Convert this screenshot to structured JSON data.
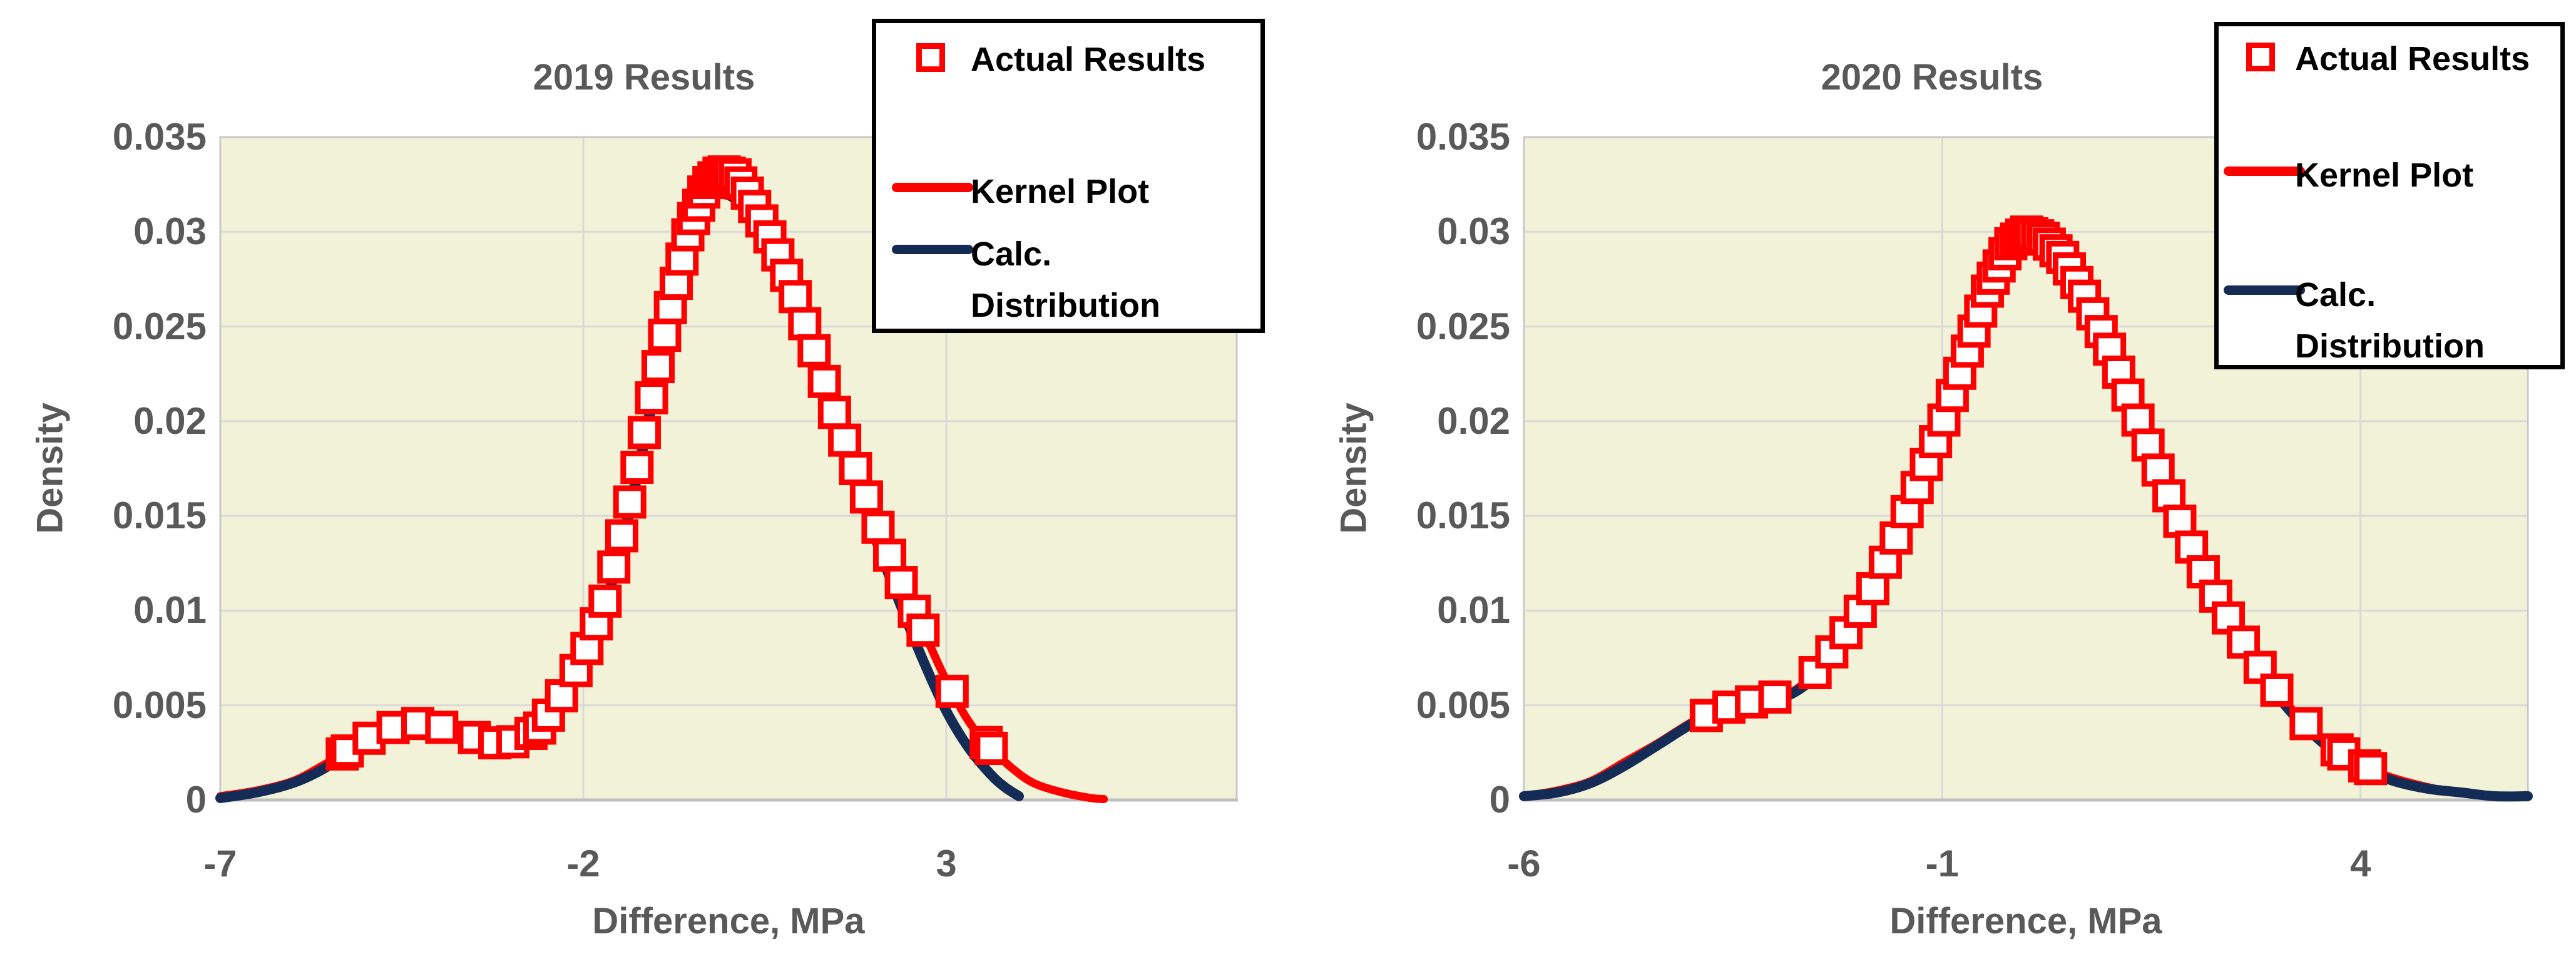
{
  "figure": {
    "description": "Two side-by-side Excel-style density charts comparing actual results, kernel density plot and calculated distribution",
    "background_color": "#ffffff"
  },
  "colors": {
    "plot_background": "#f2f2d8",
    "gridline": "#d9d9d9",
    "plot_border": "#c9c9c9",
    "axis_line": "#bfbfbf",
    "axis_text": "#595959",
    "series_red": "#ff0000",
    "series_navy": "#142c55",
    "legend_border": "#000000",
    "legend_text": "#000000"
  },
  "chart_data": [
    {
      "type": "line",
      "title": "2019 Results",
      "xlabel": "Difference, MPa",
      "ylabel": "Density",
      "xlim": [
        -7,
        7
      ],
      "ylim": [
        0,
        0.035
      ],
      "x_ticks": [
        -7,
        -2,
        3
      ],
      "x_tick_labels": [
        "-7",
        "-2",
        "3"
      ],
      "y_ticks": [
        0.035,
        0.03,
        0.025,
        0.02,
        0.015,
        0.01,
        0.005,
        0
      ],
      "y_tick_labels": [
        "0.035",
        "0.03",
        "0.025",
        "0.02",
        "0.015",
        "0.01",
        "0.005",
        "0"
      ],
      "grid": true,
      "legend_position": "top-right-overlay",
      "series": [
        {
          "name": "Actual Results",
          "type": "scatter",
          "marker": "open-square",
          "color": "#ff0000",
          "y_follows": "Kernel Plot",
          "x": [
            -5.32,
            -5.25,
            -4.95,
            -4.62,
            -4.28,
            -3.95,
            -3.5,
            -3.22,
            -2.97,
            -2.72,
            -2.6,
            -2.48,
            -2.3,
            -2.1,
            -1.95,
            -1.82,
            -1.7,
            -1.58,
            -1.47,
            -1.36,
            -1.26,
            -1.16,
            -1.06,
            -0.97,
            -0.88,
            -0.8,
            -0.72,
            -0.64,
            -0.56,
            -0.48,
            -0.41,
            -0.34,
            -0.27,
            -0.2,
            -0.13,
            -0.06,
            0.01,
            0.09,
            0.17,
            0.26,
            0.36,
            0.46,
            0.57,
            0.68,
            0.8,
            0.92,
            1.05,
            1.18,
            1.32,
            1.46,
            1.6,
            1.75,
            1.9,
            2.06,
            2.22,
            2.38,
            2.56,
            2.68,
            3.08,
            3.55,
            3.62
          ]
        },
        {
          "name": "Kernel Plot",
          "type": "line",
          "color": "#ff0000",
          "points": [
            [
              -7.0,
              0.0002
            ],
            [
              -6.5,
              0.0005
            ],
            [
              -6.0,
              0.001
            ],
            [
              -5.6,
              0.0018
            ],
            [
              -5.2,
              0.0027
            ],
            [
              -4.8,
              0.0036
            ],
            [
              -4.4,
              0.0041
            ],
            [
              -4.0,
              0.0039
            ],
            [
              -3.6,
              0.0034
            ],
            [
              -3.2,
              0.003
            ],
            [
              -2.9,
              0.0031
            ],
            [
              -2.6,
              0.0038
            ],
            [
              -2.3,
              0.0055
            ],
            [
              -2.0,
              0.0075
            ],
            [
              -1.7,
              0.0105
            ],
            [
              -1.4,
              0.015
            ],
            [
              -1.1,
              0.0205
            ],
            [
              -0.8,
              0.026
            ],
            [
              -0.55,
              0.03
            ],
            [
              -0.3,
              0.0325
            ],
            [
              -0.1,
              0.0332
            ],
            [
              0.1,
              0.033
            ],
            [
              0.3,
              0.0318
            ],
            [
              0.6,
              0.0295
            ],
            [
              0.9,
              0.0268
            ],
            [
              1.2,
              0.0235
            ],
            [
              1.5,
              0.02
            ],
            [
              1.8,
              0.017
            ],
            [
              2.1,
              0.014
            ],
            [
              2.4,
              0.0113
            ],
            [
              2.7,
              0.0088
            ],
            [
              3.0,
              0.0063
            ],
            [
              3.3,
              0.0042
            ],
            [
              3.6,
              0.0028
            ],
            [
              3.9,
              0.0017
            ],
            [
              4.2,
              0.0009
            ],
            [
              4.6,
              0.0004
            ],
            [
              5.0,
              0.0001
            ],
            [
              5.17,
              5e-05
            ]
          ]
        },
        {
          "name": "Calc. Distribution",
          "type": "line",
          "color": "#142c55",
          "points": [
            [
              -7.0,
              0.0001
            ],
            [
              -6.5,
              0.0004
            ],
            [
              -6.0,
              0.0009
            ],
            [
              -5.6,
              0.0016
            ],
            [
              -5.2,
              0.0026
            ],
            [
              -4.8,
              0.0035
            ],
            [
              -4.4,
              0.0041
            ],
            [
              -4.0,
              0.004
            ],
            [
              -3.6,
              0.0036
            ],
            [
              -3.2,
              0.0031
            ],
            [
              -2.9,
              0.003
            ],
            [
              -2.6,
              0.0036
            ],
            [
              -2.3,
              0.0052
            ],
            [
              -2.0,
              0.0072
            ],
            [
              -1.7,
              0.0102
            ],
            [
              -1.4,
              0.0146
            ],
            [
              -1.1,
              0.02
            ],
            [
              -0.8,
              0.0255
            ],
            [
              -0.55,
              0.0293
            ],
            [
              -0.3,
              0.0315
            ],
            [
              -0.1,
              0.032
            ],
            [
              0.1,
              0.0317
            ],
            [
              0.3,
              0.0308
            ],
            [
              0.6,
              0.0288
            ],
            [
              0.9,
              0.0262
            ],
            [
              1.2,
              0.023
            ],
            [
              1.5,
              0.0196
            ],
            [
              1.8,
              0.0163
            ],
            [
              2.1,
              0.013
            ],
            [
              2.4,
              0.01
            ],
            [
              2.7,
              0.0072
            ],
            [
              3.0,
              0.0047
            ],
            [
              3.3,
              0.0028
            ],
            [
              3.6,
              0.0014
            ],
            [
              3.8,
              0.0007
            ],
            [
              4.0,
              0.0002
            ]
          ]
        }
      ]
    },
    {
      "type": "line",
      "title": "2020 Results",
      "xlabel": "Difference, MPa",
      "ylabel": "Density",
      "xlim": [
        -6,
        6
      ],
      "ylim": [
        0,
        0.035
      ],
      "x_ticks": [
        -6,
        -1,
        4
      ],
      "x_tick_labels": [
        "-6",
        "-1",
        "4"
      ],
      "y_ticks": [
        0.035,
        0.03,
        0.025,
        0.02,
        0.015,
        0.01,
        0.005,
        0
      ],
      "y_tick_labels": [
        "0.035",
        "0.03",
        "0.025",
        "0.02",
        "0.015",
        "0.01",
        "0.005",
        "0"
      ],
      "grid": true,
      "legend_position": "top-right-overlay",
      "series": [
        {
          "name": "Actual Results",
          "type": "scatter",
          "marker": "open-square",
          "color": "#ff0000",
          "y_follows": "Kernel Plot",
          "x": [
            -3.82,
            -3.55,
            -3.28,
            -3.0,
            -2.52,
            -2.32,
            -2.15,
            -1.98,
            -1.83,
            -1.68,
            -1.55,
            -1.42,
            -1.3,
            -1.19,
            -1.08,
            -0.98,
            -0.88,
            -0.79,
            -0.7,
            -0.62,
            -0.54,
            -0.46,
            -0.39,
            -0.32,
            -0.25,
            -0.18,
            -0.11,
            -0.05,
            0.01,
            0.07,
            0.14,
            0.21,
            0.28,
            0.36,
            0.44,
            0.52,
            0.61,
            0.7,
            0.8,
            0.9,
            1.0,
            1.11,
            1.22,
            1.34,
            1.46,
            1.58,
            1.71,
            1.84,
            1.98,
            2.12,
            2.27,
            2.42,
            2.6,
            2.8,
            3.0,
            3.35,
            3.72,
            3.8,
            4.05,
            4.12
          ]
        },
        {
          "name": "Kernel Plot",
          "type": "line",
          "color": "#ff0000",
          "points": [
            [
              -6.0,
              0.0002
            ],
            [
              -5.6,
              0.0005
            ],
            [
              -5.2,
              0.001
            ],
            [
              -4.8,
              0.002
            ],
            [
              -4.4,
              0.003
            ],
            [
              -4.0,
              0.0041
            ],
            [
              -3.7,
              0.0047
            ],
            [
              -3.4,
              0.0051
            ],
            [
              -3.1,
              0.0053
            ],
            [
              -2.8,
              0.0057
            ],
            [
              -2.5,
              0.0068
            ],
            [
              -2.2,
              0.0085
            ],
            [
              -1.9,
              0.0105
            ],
            [
              -1.6,
              0.0133
            ],
            [
              -1.3,
              0.0165
            ],
            [
              -1.0,
              0.0198
            ],
            [
              -0.7,
              0.0237
            ],
            [
              -0.45,
              0.027
            ],
            [
              -0.2,
              0.0293
            ],
            [
              0.0,
              0.03
            ],
            [
              0.2,
              0.0297
            ],
            [
              0.45,
              0.0286
            ],
            [
              0.7,
              0.0266
            ],
            [
              1.0,
              0.0238
            ],
            [
              1.3,
              0.0205
            ],
            [
              1.6,
              0.0172
            ],
            [
              1.9,
              0.0141
            ],
            [
              2.2,
              0.0113
            ],
            [
              2.5,
              0.009
            ],
            [
              2.8,
              0.007
            ],
            [
              3.1,
              0.0052
            ],
            [
              3.4,
              0.0038
            ],
            [
              3.7,
              0.0027
            ],
            [
              4.0,
              0.0019
            ],
            [
              4.3,
              0.0013
            ],
            [
              4.6,
              0.0009
            ],
            [
              5.0,
              0.0005
            ],
            [
              5.5,
              0.0002
            ]
          ]
        },
        {
          "name": "Calc. Distribution",
          "type": "line",
          "color": "#142c55",
          "points": [
            [
              -6.0,
              0.0002
            ],
            [
              -5.6,
              0.0004
            ],
            [
              -5.2,
              0.0009
            ],
            [
              -4.8,
              0.0018
            ],
            [
              -4.4,
              0.0029
            ],
            [
              -4.0,
              0.004
            ],
            [
              -3.7,
              0.0046
            ],
            [
              -3.4,
              0.005
            ],
            [
              -3.1,
              0.0052
            ],
            [
              -2.8,
              0.0056
            ],
            [
              -2.5,
              0.0066
            ],
            [
              -2.2,
              0.0083
            ],
            [
              -1.9,
              0.0103
            ],
            [
              -1.6,
              0.013
            ],
            [
              -1.3,
              0.0162
            ],
            [
              -1.0,
              0.0195
            ],
            [
              -0.7,
              0.0234
            ],
            [
              -0.45,
              0.0267
            ],
            [
              -0.2,
              0.029
            ],
            [
              0.0,
              0.0297
            ],
            [
              0.2,
              0.0294
            ],
            [
              0.45,
              0.0283
            ],
            [
              0.7,
              0.0263
            ],
            [
              1.0,
              0.0236
            ],
            [
              1.3,
              0.0203
            ],
            [
              1.6,
              0.017
            ],
            [
              1.9,
              0.0139
            ],
            [
              2.2,
              0.0111
            ],
            [
              2.5,
              0.0088
            ],
            [
              2.8,
              0.0068
            ],
            [
              3.1,
              0.005
            ],
            [
              3.4,
              0.0036
            ],
            [
              3.7,
              0.0025
            ],
            [
              4.0,
              0.0017
            ],
            [
              4.4,
              0.001
            ],
            [
              4.8,
              0.0006
            ],
            [
              5.2,
              0.0004
            ],
            [
              5.6,
              0.0002
            ],
            [
              6.0,
              0.0002
            ]
          ]
        }
      ]
    }
  ]
}
